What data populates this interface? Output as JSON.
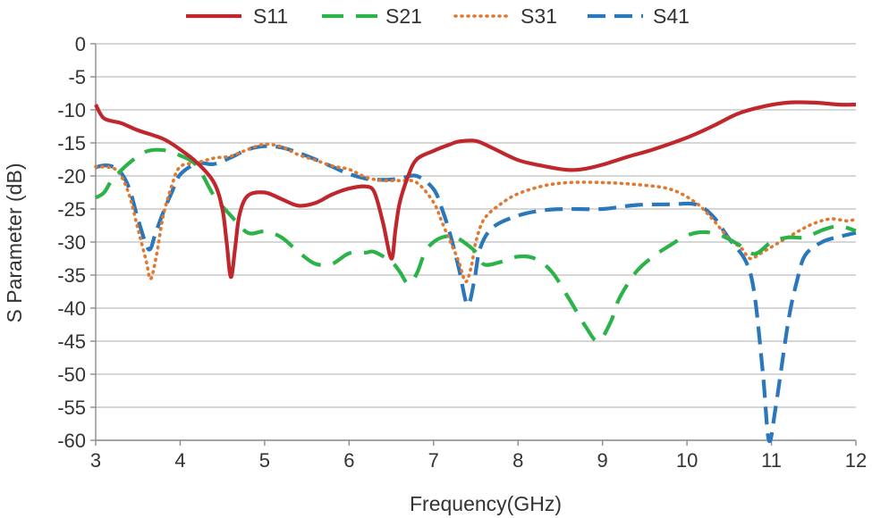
{
  "chart_data": {
    "type": "line",
    "title": "",
    "xlabel": "Frequency(GHz)",
    "ylabel": "S Parameter (dB)",
    "xlim": [
      3,
      12
    ],
    "ylim": [
      -60,
      0
    ],
    "x_ticks": [
      3,
      4,
      5,
      6,
      7,
      8,
      9,
      10,
      11,
      12
    ],
    "y_ticks": [
      0,
      -5,
      -10,
      -15,
      -20,
      -25,
      -30,
      -35,
      -40,
      -45,
      -50,
      -55,
      -60
    ],
    "grid": "horizontal",
    "legend_position": "top",
    "series": [
      {
        "name": "S11",
        "color": "#c0272d",
        "dash": "solid",
        "points": [
          [
            3,
            -9.2
          ],
          [
            3.1,
            -11.3
          ],
          [
            3.3,
            -12
          ],
          [
            3.5,
            -13.1
          ],
          [
            3.8,
            -14.4
          ],
          [
            4.0,
            -16
          ],
          [
            4.2,
            -18
          ],
          [
            4.4,
            -21
          ],
          [
            4.5,
            -25
          ],
          [
            4.55,
            -30
          ],
          [
            4.6,
            -35.3
          ],
          [
            4.65,
            -31
          ],
          [
            4.7,
            -26
          ],
          [
            4.8,
            -23
          ],
          [
            5.0,
            -22.5
          ],
          [
            5.2,
            -23.5
          ],
          [
            5.4,
            -24.5
          ],
          [
            5.6,
            -24.1
          ],
          [
            5.8,
            -22.8
          ],
          [
            6.0,
            -21.9
          ],
          [
            6.2,
            -21.6
          ],
          [
            6.3,
            -22.5
          ],
          [
            6.4,
            -27
          ],
          [
            6.5,
            -32.5
          ],
          [
            6.55,
            -28
          ],
          [
            6.6,
            -24
          ],
          [
            6.7,
            -20
          ],
          [
            6.8,
            -17.5
          ],
          [
            7.0,
            -16.2
          ],
          [
            7.2,
            -15.2
          ],
          [
            7.3,
            -14.8
          ],
          [
            7.5,
            -14.7
          ],
          [
            7.7,
            -15.8
          ],
          [
            8.0,
            -17.6
          ],
          [
            8.3,
            -18.5
          ],
          [
            8.6,
            -19.1
          ],
          [
            8.8,
            -18.9
          ],
          [
            9.0,
            -18.3
          ],
          [
            9.3,
            -17.1
          ],
          [
            9.6,
            -16
          ],
          [
            10.0,
            -14.2
          ],
          [
            10.3,
            -12.5
          ],
          [
            10.6,
            -10.6
          ],
          [
            10.9,
            -9.5
          ],
          [
            11.2,
            -8.9
          ],
          [
            11.5,
            -8.9
          ],
          [
            11.8,
            -9.2
          ],
          [
            12,
            -9.2
          ]
        ]
      },
      {
        "name": "S21",
        "color": "#2bb34a",
        "dash": "long-dash",
        "points": [
          [
            3,
            -23.3
          ],
          [
            3.1,
            -22.5
          ],
          [
            3.2,
            -20.5
          ],
          [
            3.4,
            -18
          ],
          [
            3.6,
            -16.3
          ],
          [
            3.8,
            -16.1
          ],
          [
            4.0,
            -16.9
          ],
          [
            4.2,
            -18.5
          ],
          [
            4.4,
            -23
          ],
          [
            4.6,
            -26
          ],
          [
            4.8,
            -28.6
          ],
          [
            5.0,
            -28.4
          ],
          [
            5.2,
            -29.3
          ],
          [
            5.4,
            -31.5
          ],
          [
            5.6,
            -33.3
          ],
          [
            5.8,
            -33.3
          ],
          [
            6.0,
            -31.7
          ],
          [
            6.2,
            -31.6
          ],
          [
            6.3,
            -31.5
          ],
          [
            6.5,
            -33
          ],
          [
            6.6,
            -34.5
          ],
          [
            6.7,
            -36.3
          ],
          [
            6.8,
            -34.8
          ],
          [
            6.9,
            -31.5
          ],
          [
            7.0,
            -30
          ],
          [
            7.1,
            -29.3
          ],
          [
            7.2,
            -29.1
          ],
          [
            7.3,
            -29.5
          ],
          [
            7.5,
            -31.5
          ],
          [
            7.6,
            -33.4
          ],
          [
            7.8,
            -33
          ],
          [
            8.0,
            -32.2
          ],
          [
            8.2,
            -32.5
          ],
          [
            8.4,
            -34.5
          ],
          [
            8.6,
            -38.5
          ],
          [
            8.8,
            -42.8
          ],
          [
            8.95,
            -45
          ],
          [
            9.1,
            -42
          ],
          [
            9.2,
            -38.5
          ],
          [
            9.4,
            -34.5
          ],
          [
            9.6,
            -32.2
          ],
          [
            9.8,
            -30.5
          ],
          [
            10.0,
            -29
          ],
          [
            10.2,
            -28.5
          ],
          [
            10.4,
            -29
          ],
          [
            10.6,
            -30.3
          ],
          [
            10.8,
            -31.8
          ],
          [
            11.0,
            -30
          ],
          [
            11.2,
            -29.3
          ],
          [
            11.4,
            -29.3
          ],
          [
            11.6,
            -28.2
          ],
          [
            11.8,
            -27.6
          ],
          [
            12,
            -28.3
          ]
        ]
      },
      {
        "name": "S31",
        "color": "#e1782f",
        "dash": "dotted",
        "points": [
          [
            3,
            -18.6
          ],
          [
            3.2,
            -18.8
          ],
          [
            3.3,
            -20
          ],
          [
            3.4,
            -23
          ],
          [
            3.5,
            -28
          ],
          [
            3.6,
            -33
          ],
          [
            3.65,
            -35.6
          ],
          [
            3.72,
            -32
          ],
          [
            3.8,
            -26
          ],
          [
            3.9,
            -21.5
          ],
          [
            4.0,
            -18.6
          ],
          [
            4.2,
            -18
          ],
          [
            4.4,
            -17.3
          ],
          [
            4.6,
            -17
          ],
          [
            4.8,
            -16
          ],
          [
            5.0,
            -15.2
          ],
          [
            5.2,
            -15.6
          ],
          [
            5.4,
            -16.8
          ],
          [
            5.6,
            -17.6
          ],
          [
            5.8,
            -18.5
          ],
          [
            6.0,
            -19
          ],
          [
            6.2,
            -20.2
          ],
          [
            6.4,
            -20.7
          ],
          [
            6.6,
            -20.7
          ],
          [
            6.8,
            -21
          ],
          [
            7.0,
            -24
          ],
          [
            7.1,
            -27
          ],
          [
            7.2,
            -30
          ],
          [
            7.3,
            -33
          ],
          [
            7.38,
            -36
          ],
          [
            7.45,
            -33.5
          ],
          [
            7.5,
            -30
          ],
          [
            7.6,
            -26.5
          ],
          [
            7.8,
            -24.2
          ],
          [
            8.0,
            -22.7
          ],
          [
            8.3,
            -21.5
          ],
          [
            8.6,
            -21
          ],
          [
            9.0,
            -21
          ],
          [
            9.4,
            -21.3
          ],
          [
            9.8,
            -22
          ],
          [
            10.1,
            -24
          ],
          [
            10.3,
            -26.5
          ],
          [
            10.5,
            -29.5
          ],
          [
            10.65,
            -31
          ],
          [
            10.75,
            -32.5
          ],
          [
            10.9,
            -31.5
          ],
          [
            11.1,
            -30
          ],
          [
            11.3,
            -28.5
          ],
          [
            11.5,
            -27.2
          ],
          [
            11.7,
            -26.5
          ],
          [
            11.9,
            -26.8
          ],
          [
            12,
            -26.5
          ]
        ]
      },
      {
        "name": "S41",
        "color": "#2a77bb",
        "dash": "dash",
        "points": [
          [
            3,
            -18.7
          ],
          [
            3.1,
            -18.4
          ],
          [
            3.2,
            -18.6
          ],
          [
            3.3,
            -19.5
          ],
          [
            3.4,
            -22
          ],
          [
            3.5,
            -26.5
          ],
          [
            3.6,
            -30.5
          ],
          [
            3.65,
            -31
          ],
          [
            3.7,
            -29
          ],
          [
            3.8,
            -25.5
          ],
          [
            3.9,
            -22.5
          ],
          [
            4.0,
            -19.8
          ],
          [
            4.2,
            -18.1
          ],
          [
            4.4,
            -18.2
          ],
          [
            4.6,
            -17.2
          ],
          [
            4.8,
            -16
          ],
          [
            5.0,
            -15.5
          ],
          [
            5.2,
            -15.7
          ],
          [
            5.4,
            -16.5
          ],
          [
            5.6,
            -17.5
          ],
          [
            5.8,
            -18.6
          ],
          [
            6.0,
            -19.7
          ],
          [
            6.2,
            -20.4
          ],
          [
            6.4,
            -20.6
          ],
          [
            6.6,
            -20.4
          ],
          [
            6.8,
            -20
          ],
          [
            7.0,
            -22
          ],
          [
            7.1,
            -25
          ],
          [
            7.2,
            -29
          ],
          [
            7.3,
            -34
          ],
          [
            7.4,
            -39.5
          ],
          [
            7.48,
            -36
          ],
          [
            7.55,
            -31
          ],
          [
            7.7,
            -27.8
          ],
          [
            8.0,
            -26
          ],
          [
            8.3,
            -25.2
          ],
          [
            8.6,
            -25
          ],
          [
            9.0,
            -25
          ],
          [
            9.4,
            -24.4
          ],
          [
            9.8,
            -24.3
          ],
          [
            10.1,
            -24.3
          ],
          [
            10.3,
            -26
          ],
          [
            10.5,
            -29.5
          ],
          [
            10.7,
            -33
          ],
          [
            10.8,
            -38
          ],
          [
            10.9,
            -50
          ],
          [
            10.97,
            -60
          ],
          [
            11.05,
            -55
          ],
          [
            11.2,
            -42
          ],
          [
            11.3,
            -36
          ],
          [
            11.4,
            -32
          ],
          [
            11.6,
            -30
          ],
          [
            11.8,
            -29.2
          ],
          [
            12,
            -28.6
          ]
        ]
      }
    ]
  }
}
